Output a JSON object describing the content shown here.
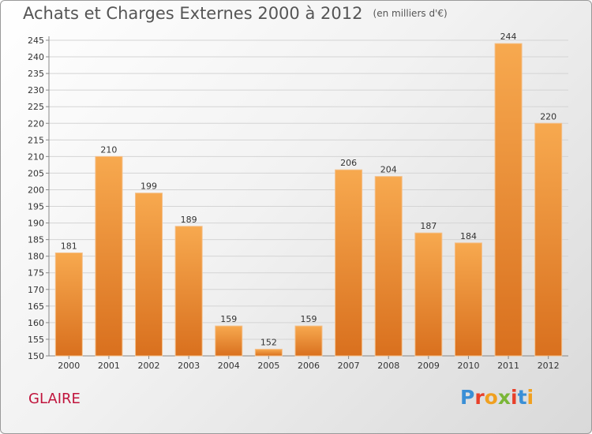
{
  "title": "Achats et Charges Externes 2000 à 2012",
  "unit_note": "(en milliers d'€)",
  "commune": "GLAIRE",
  "logo": {
    "text": "Proxiti",
    "colors": [
      "#3a8fd6",
      "#e8402a",
      "#f0a020",
      "#7ab637",
      "#e8402a",
      "#3a8fd6",
      "#f0a020"
    ]
  },
  "colors": {
    "bar_top": "#f7a94f",
    "bar_bottom": "#d9701e",
    "commune": "#c0143c"
  },
  "chart_data": {
    "type": "bar",
    "categories": [
      "2000",
      "2001",
      "2002",
      "2003",
      "2004",
      "2005",
      "2006",
      "2007",
      "2008",
      "2009",
      "2010",
      "2011",
      "2012"
    ],
    "values": [
      181,
      210,
      199,
      189,
      159,
      152,
      159,
      206,
      204,
      187,
      184,
      244,
      220
    ],
    "ylim": [
      150,
      245
    ],
    "yticks": [
      150,
      155,
      160,
      165,
      170,
      175,
      180,
      185,
      190,
      195,
      200,
      205,
      210,
      215,
      220,
      225,
      230,
      235,
      240,
      245
    ],
    "grid": true,
    "title": "Achats et Charges Externes 2000 à 2012",
    "xlabel": "",
    "ylabel": ""
  }
}
